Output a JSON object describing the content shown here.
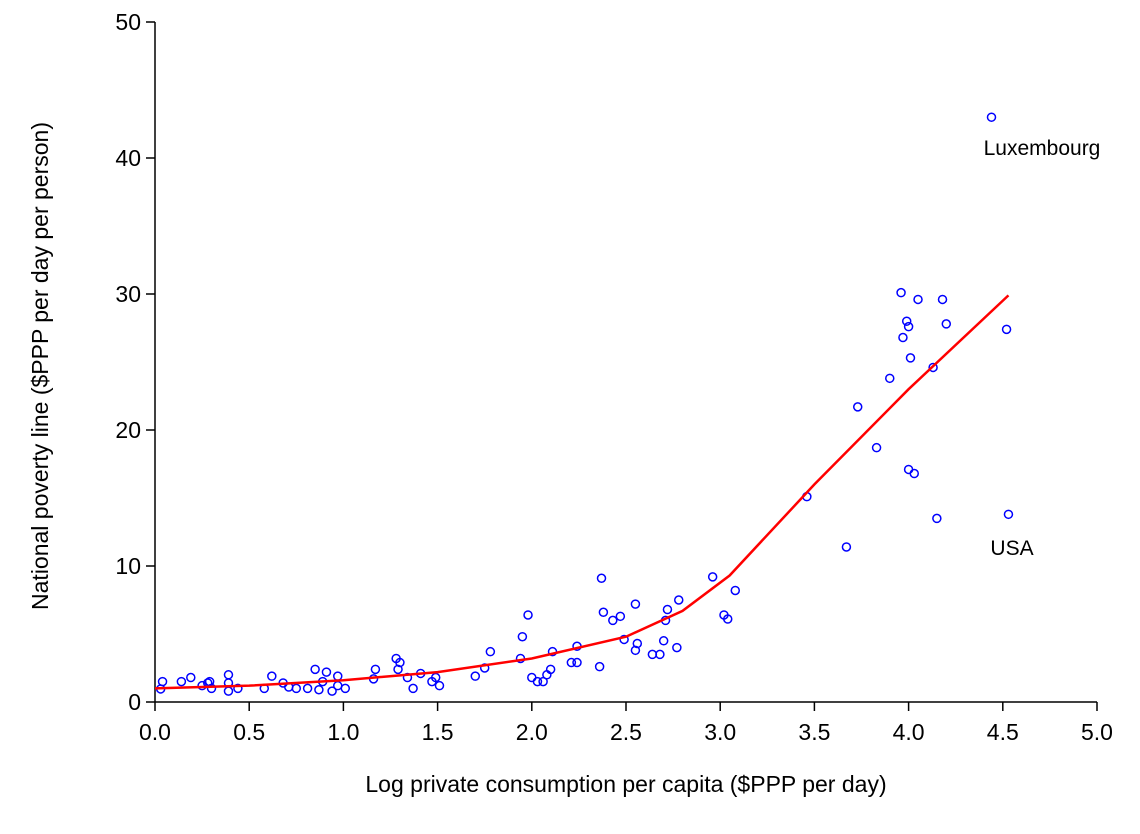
{
  "chart_data": {
    "type": "scatter",
    "x_label": "Log private consumption per capita ($PPP per day)",
    "y_label": "National poverty line ($PPP per day per person)",
    "xlim": [
      0,
      5
    ],
    "ylim": [
      0,
      50
    ],
    "xticks": [
      {
        "value": 0,
        "label": "0.0"
      },
      0.5,
      {
        "value": 1,
        "label": "1.0"
      },
      1.5,
      {
        "value": 2,
        "label": "2.0"
      },
      2.5,
      {
        "value": 3,
        "label": "3.0"
      },
      3.5,
      {
        "value": 4,
        "label": "4.0"
      },
      4.5,
      {
        "value": 5,
        "label": "5.0"
      }
    ],
    "yticks": [
      0,
      10,
      20,
      30,
      40,
      50
    ],
    "grid": false,
    "points": {
      "color": "#0000ff",
      "x": [
        0.03,
        0.04,
        0.14,
        0.19,
        0.25,
        0.28,
        0.29,
        0.3,
        0.39,
        0.39,
        0.39,
        0.44,
        0.58,
        0.62,
        0.68,
        0.71,
        0.75,
        0.81,
        0.85,
        0.87,
        0.89,
        0.91,
        0.94,
        0.97,
        0.97,
        1.01,
        1.17,
        1.16,
        1.28,
        1.3,
        1.29,
        1.34,
        1.37,
        1.41,
        1.47,
        1.49,
        1.51,
        1.7,
        1.75,
        1.78,
        1.94,
        1.95,
        1.98,
        2.0,
        2.03,
        2.06,
        2.08,
        2.1,
        2.11,
        2.21,
        2.24,
        2.24,
        2.36,
        2.37,
        2.38,
        2.43,
        2.47,
        2.49,
        2.55,
        2.55,
        2.56,
        2.64,
        2.68,
        2.7,
        2.71,
        2.72,
        2.77,
        2.78,
        2.96,
        3.02,
        3.04,
        3.08,
        3.46,
        3.67,
        3.73,
        3.83,
        3.9,
        3.96,
        3.97,
        3.99,
        4.0,
        4.0,
        4.01,
        4.03,
        4.05,
        4.18,
        4.2,
        4.15,
        4.13,
        4.44,
        4.52,
        4.53
      ],
      "y": [
        0.96,
        1.5,
        1.5,
        1.8,
        1.2,
        1.4,
        1.5,
        1.0,
        2.0,
        1.4,
        0.8,
        1.0,
        1.0,
        1.9,
        1.4,
        1.1,
        1.0,
        1.0,
        2.4,
        0.9,
        1.5,
        2.2,
        0.8,
        1.9,
        1.2,
        1.0,
        2.4,
        1.7,
        3.2,
        2.9,
        2.4,
        1.8,
        1.0,
        2.1,
        1.5,
        1.8,
        1.2,
        1.9,
        2.5,
        3.7,
        3.2,
        4.8,
        6.4,
        1.8,
        1.5,
        1.5,
        2.0,
        2.4,
        3.7,
        2.9,
        2.9,
        4.1,
        2.6,
        9.1,
        6.6,
        6.0,
        6.3,
        4.6,
        3.8,
        7.2,
        4.3,
        3.5,
        3.5,
        4.5,
        6.0,
        6.8,
        4.0,
        7.5,
        9.2,
        6.4,
        6.1,
        8.2,
        15.1,
        11.4,
        21.7,
        18.7,
        23.8,
        30.1,
        26.8,
        28.0,
        27.6,
        17.1,
        25.3,
        16.8,
        29.6,
        29.6,
        27.8,
        13.5,
        24.6,
        43.0,
        27.4,
        13.8
      ]
    },
    "fit": {
      "color": "#ff0000",
      "x": [
        0,
        0.5,
        1.0,
        1.5,
        2.0,
        2.5,
        2.8,
        3.05,
        3.5,
        4.0,
        4.53
      ],
      "y": [
        1.0,
        1.2,
        1.6,
        2.2,
        3.2,
        4.8,
        6.7,
        9.3,
        16.0,
        23.0,
        29.9
      ]
    },
    "annotations": [
      "Luxembourg",
      "USA"
    ]
  }
}
